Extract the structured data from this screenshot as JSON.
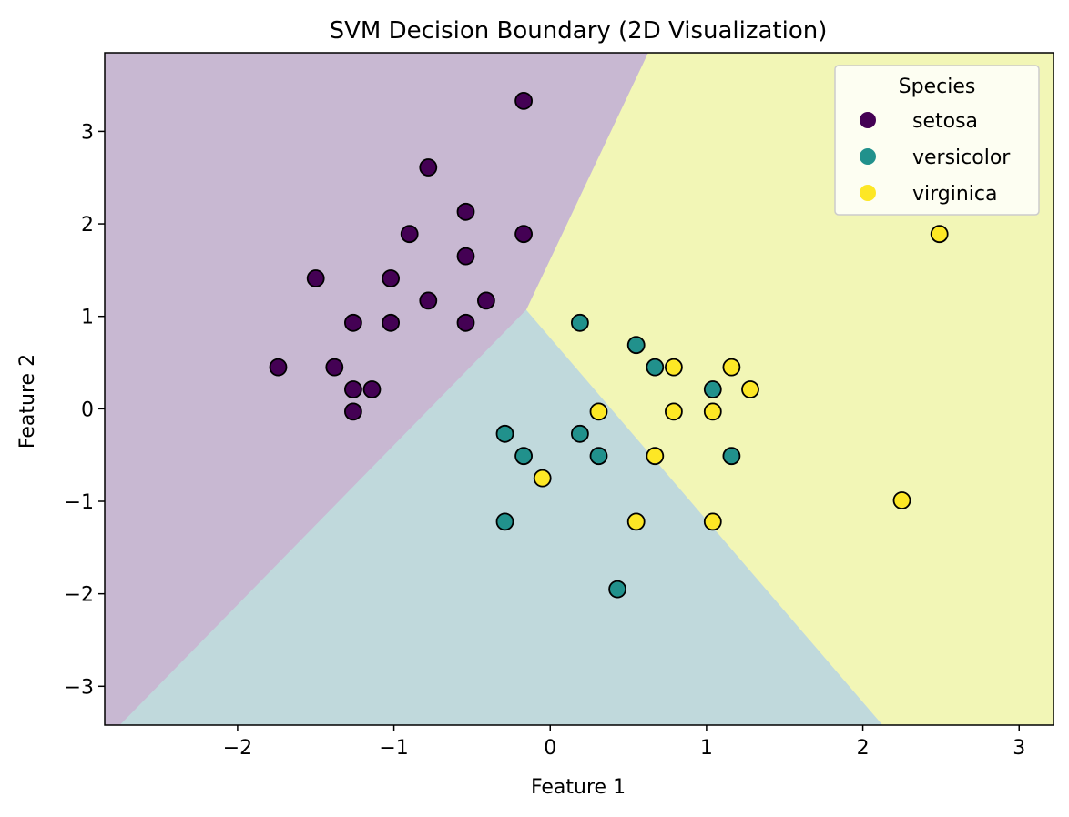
{
  "chart_data": {
    "type": "scatter",
    "title": "SVM Decision Boundary (2D Visualization)",
    "xlabel": "Feature 1",
    "ylabel": "Feature 2",
    "xlim": [
      -2.85,
      3.22
    ],
    "ylim": [
      -3.42,
      3.85
    ],
    "xticks": [
      -2,
      -1,
      0,
      1,
      2,
      3
    ],
    "yticks": [
      -3,
      -2,
      -1,
      0,
      1,
      2,
      3
    ],
    "xtick_labels": [
      "−2",
      "−1",
      "0",
      "1",
      "2",
      "3"
    ],
    "ytick_labels": [
      "−3",
      "−2",
      "−1",
      "0",
      "1",
      "2",
      "3"
    ],
    "grid": false,
    "legend": {
      "title": "Species",
      "placement": "top-right",
      "entries": [
        "setosa",
        "versicolor",
        "virginica"
      ]
    },
    "regions": [
      {
        "name": "setosa",
        "color": "#c8b8d2",
        "polygon": [
          [
            -2.85,
            3.85
          ],
          [
            0.63,
            3.85
          ],
          [
            -0.15,
            1.07
          ],
          [
            -2.75,
            -3.42
          ],
          [
            -2.85,
            -3.42
          ]
        ]
      },
      {
        "name": "versicolor",
        "color": "#c0d9dc",
        "polygon": [
          [
            -0.15,
            1.07
          ],
          [
            -2.75,
            -3.42
          ],
          [
            2.13,
            -3.42
          ]
        ]
      },
      {
        "name": "virginica",
        "color": "#f2f6b6",
        "polygon": [
          [
            0.63,
            3.85
          ],
          [
            3.22,
            3.85
          ],
          [
            3.22,
            -3.42
          ],
          [
            2.13,
            -3.42
          ],
          [
            -0.15,
            1.07
          ]
        ]
      }
    ],
    "series": [
      {
        "name": "setosa",
        "color": "#440154",
        "points": [
          [
            -0.17,
            3.33
          ],
          [
            -0.78,
            2.61
          ],
          [
            -0.54,
            2.13
          ],
          [
            -0.17,
            1.89
          ],
          [
            -0.9,
            1.89
          ],
          [
            -0.54,
            1.65
          ],
          [
            -1.5,
            1.41
          ],
          [
            -1.02,
            1.41
          ],
          [
            -0.78,
            1.17
          ],
          [
            -0.41,
            1.17
          ],
          [
            -1.26,
            0.93
          ],
          [
            -1.02,
            0.93
          ],
          [
            -0.54,
            0.93
          ],
          [
            -1.74,
            0.45
          ],
          [
            -1.38,
            0.45
          ],
          [
            -1.26,
            0.21
          ],
          [
            -1.14,
            0.21
          ],
          [
            -1.26,
            -0.03
          ]
        ]
      },
      {
        "name": "versicolor",
        "color": "#21918c",
        "points": [
          [
            0.19,
            0.93
          ],
          [
            0.55,
            0.69
          ],
          [
            0.67,
            0.45
          ],
          [
            1.04,
            0.21
          ],
          [
            -0.29,
            -0.27
          ],
          [
            0.19,
            -0.27
          ],
          [
            -0.17,
            -0.51
          ],
          [
            0.31,
            -0.51
          ],
          [
            1.16,
            -0.51
          ],
          [
            -0.29,
            -1.22
          ],
          [
            0.43,
            -1.95
          ]
        ]
      },
      {
        "name": "virginica",
        "color": "#fde725",
        "points": [
          [
            2.49,
            1.89
          ],
          [
            0.79,
            0.45
          ],
          [
            1.16,
            0.45
          ],
          [
            1.28,
            0.21
          ],
          [
            0.31,
            -0.03
          ],
          [
            0.79,
            -0.03
          ],
          [
            1.04,
            -0.03
          ],
          [
            0.67,
            -0.51
          ],
          [
            -0.05,
            -0.75
          ],
          [
            2.25,
            -0.99
          ],
          [
            0.55,
            -1.22
          ],
          [
            1.04,
            -1.22
          ]
        ]
      }
    ]
  }
}
